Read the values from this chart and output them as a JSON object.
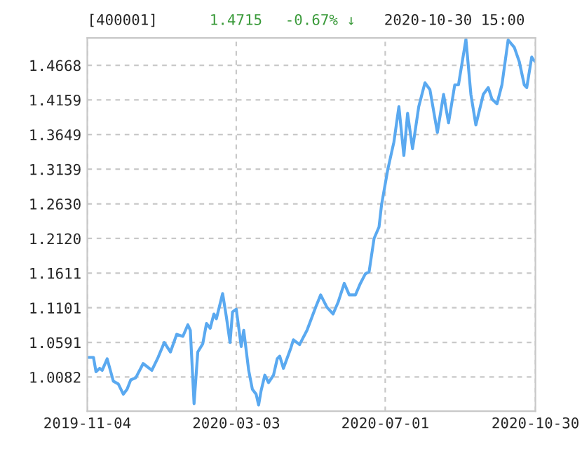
{
  "chart_data": {
    "type": "line",
    "title": "[400001]",
    "annotations": [
      "1.4715",
      "-0.67% ↓",
      "2020-10-30 15:00"
    ],
    "x": [
      "2019-11-04",
      "2019-11-09",
      "2019-11-11",
      "2019-11-14",
      "2019-11-16",
      "2019-11-20",
      "2019-11-25",
      "2019-11-29",
      "2019-12-03",
      "2019-12-06",
      "2019-12-09",
      "2019-12-13",
      "2019-12-19",
      "2019-12-26",
      "2019-12-31",
      "2020-01-05",
      "2020-01-10",
      "2020-01-15",
      "2020-01-20",
      "2020-01-24",
      "2020-01-26",
      "2020-01-29",
      "2020-02-01",
      "2020-02-05",
      "2020-02-08",
      "2020-02-11",
      "2020-02-14",
      "2020-02-16",
      "2020-02-21",
      "2020-02-24",
      "2020-02-27",
      "2020-02-29",
      "2020-03-03",
      "2020-03-07",
      "2020-03-09",
      "2020-03-13",
      "2020-03-16",
      "2020-03-19",
      "2020-03-21",
      "2020-03-23",
      "2020-03-26",
      "2020-03-29",
      "2020-04-02",
      "2020-04-05",
      "2020-04-07",
      "2020-04-10",
      "2020-04-16",
      "2020-04-18",
      "2020-04-23",
      "2020-04-29",
      "2020-05-06",
      "2020-05-10",
      "2020-05-15",
      "2020-05-20",
      "2020-05-24",
      "2020-05-29",
      "2020-06-02",
      "2020-06-07",
      "2020-06-11",
      "2020-06-15",
      "2020-06-18",
      "2020-06-22",
      "2020-06-26",
      "2020-06-28",
      "2020-07-03",
      "2020-07-08",
      "2020-07-12",
      "2020-07-16",
      "2020-07-19",
      "2020-07-23",
      "2020-07-28",
      "2020-08-02",
      "2020-08-06",
      "2020-08-12",
      "2020-08-17",
      "2020-08-21",
      "2020-08-26",
      "2020-08-29",
      "2020-09-04",
      "2020-09-08",
      "2020-09-12",
      "2020-09-18",
      "2020-09-22",
      "2020-09-25",
      "2020-09-29",
      "2020-10-03",
      "2020-10-08",
      "2020-10-13",
      "2020-10-17",
      "2020-10-21",
      "2020-10-23",
      "2020-10-27",
      "2020-10-28",
      "2020-10-30"
    ],
    "series": [
      {
        "color": "#5aa9f0",
        "values": [
          1.037,
          1.037,
          1.016,
          1.021,
          1.018,
          1.035,
          1.002,
          0.998,
          0.983,
          0.99,
          1.004,
          1.007,
          1.028,
          1.018,
          1.037,
          1.059,
          1.045,
          1.071,
          1.068,
          1.085,
          1.077,
          0.969,
          1.045,
          1.057,
          1.087,
          1.08,
          1.101,
          1.094,
          1.131,
          1.097,
          1.059,
          1.104,
          1.108,
          1.053,
          1.077,
          1.018,
          0.99,
          0.983,
          0.967,
          0.988,
          1.011,
          1.0,
          1.011,
          1.035,
          1.039,
          1.021,
          1.051,
          1.063,
          1.056,
          1.077,
          1.111,
          1.129,
          1.111,
          1.101,
          1.118,
          1.146,
          1.129,
          1.129,
          1.146,
          1.16,
          1.163,
          1.212,
          1.229,
          1.261,
          1.313,
          1.354,
          1.406,
          1.334,
          1.396,
          1.344,
          1.406,
          1.441,
          1.431,
          1.368,
          1.424,
          1.382,
          1.438,
          1.438,
          1.505,
          1.424,
          1.379,
          1.424,
          1.434,
          1.417,
          1.41,
          1.438,
          1.504,
          1.493,
          1.472,
          1.438,
          1.434,
          1.479,
          1.476,
          1.472
        ]
      }
    ],
    "xlim": [
      "2019-11-04",
      "2020-10-30"
    ],
    "xticks": [
      "2019-11-04",
      "2020-03-03",
      "2020-07-01",
      "2020-10-30"
    ],
    "ylim": [
      0.958,
      1.507
    ],
    "yticks": [
      1.0082,
      1.0591,
      1.1101,
      1.1611,
      {
        "value": 1.212,
        "label": "1.2120"
      },
      {
        "value": 1.263,
        "label": "1.2630"
      },
      1.3139,
      1.3649,
      1.4159,
      1.4668
    ],
    "grid": true
  }
}
